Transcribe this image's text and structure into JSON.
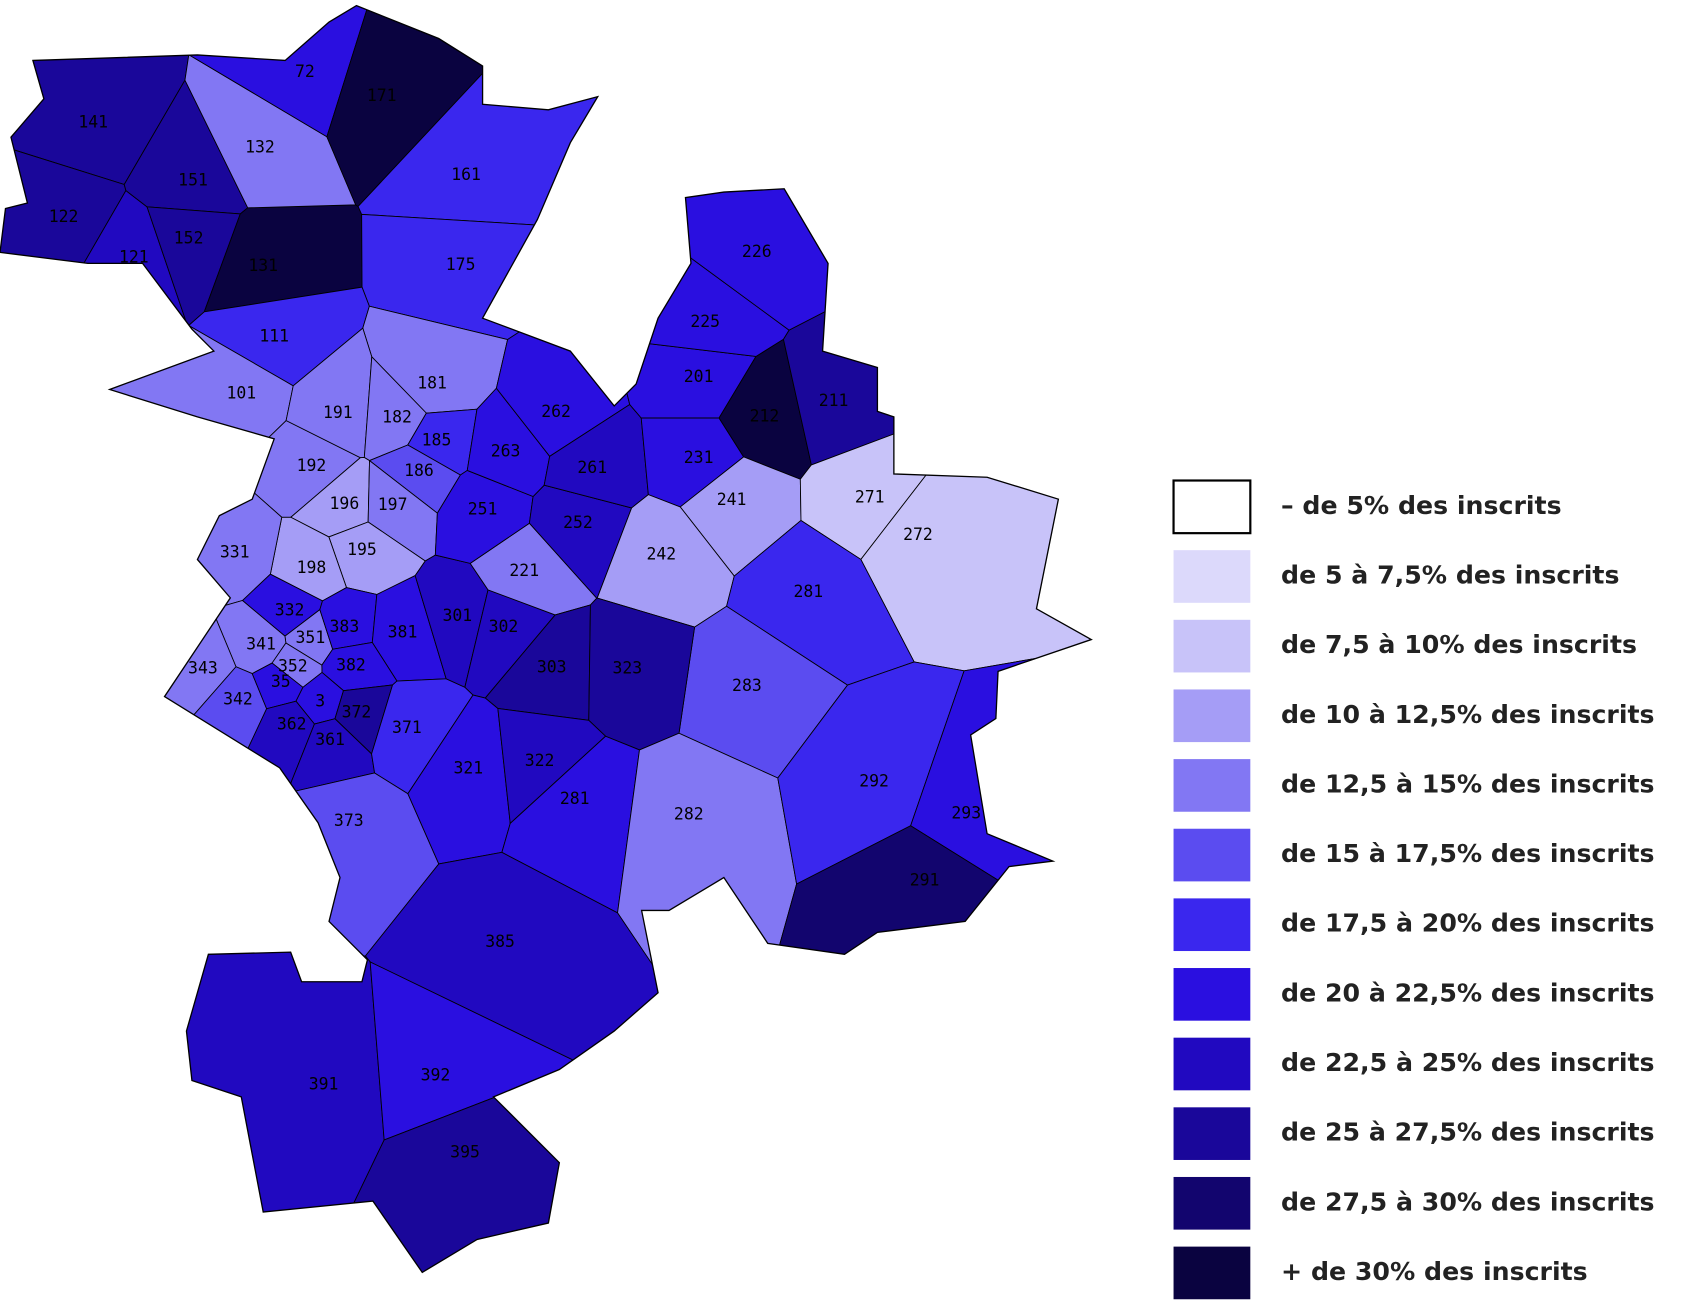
{
  "districts": [
    {
      "label": "141",
      "color": "#1a079a"
    },
    {
      "label": "122",
      "color": "#1a079a"
    },
    {
      "label": "121",
      "color": "#2109c0"
    },
    {
      "label": "151",
      "color": "#1a079a"
    },
    {
      "label": "152",
      "color": "#1a079a"
    },
    {
      "label": "131",
      "color": "#0a0340"
    },
    {
      "label": "132",
      "color": "#8277f3"
    },
    {
      "label": "72",
      "color": "#2a0fe0"
    },
    {
      "label": "171",
      "color": "#0a0340"
    },
    {
      "label": "161",
      "color": "#3a27ee"
    },
    {
      "label": "175",
      "color": "#3a27ee"
    },
    {
      "label": "111",
      "color": "#3a27ee"
    },
    {
      "label": "101",
      "color": "#8277f3"
    },
    {
      "label": "181",
      "color": "#8277f3"
    },
    {
      "label": "191",
      "color": "#8277f3"
    },
    {
      "label": "182",
      "color": "#8277f3"
    },
    {
      "label": "185",
      "color": "#3a27ee"
    },
    {
      "label": "186",
      "color": "#5b4cf0"
    },
    {
      "label": "192",
      "color": "#8277f3"
    },
    {
      "label": "196",
      "color": "#a59df6"
    },
    {
      "label": "197",
      "color": "#8277f3"
    },
    {
      "label": "195",
      "color": "#a59df6"
    },
    {
      "label": "198",
      "color": "#a59df6"
    },
    {
      "label": "331",
      "color": "#8277f3"
    },
    {
      "label": "332",
      "color": "#2a0fe0"
    },
    {
      "label": "351",
      "color": "#8277f3"
    },
    {
      "label": "383",
      "color": "#2a0fe0"
    },
    {
      "label": "381",
      "color": "#2a0fe0"
    },
    {
      "label": "341",
      "color": "#8277f3"
    },
    {
      "label": "343",
      "color": "#8277f3"
    },
    {
      "label": "342",
      "color": "#5b4cf0"
    },
    {
      "label": "352",
      "color": "#8277f3"
    },
    {
      "label": "382",
      "color": "#2a0fe0"
    },
    {
      "label": "35",
      "color": "#2a0fe0"
    },
    {
      "label": "3",
      "color": "#2a0fe0"
    },
    {
      "label": "362",
      "color": "#2109c0"
    },
    {
      "label": "372",
      "color": "#1a079a"
    },
    {
      "label": "361",
      "color": "#2109c0"
    },
    {
      "label": "371",
      "color": "#3a27ee"
    },
    {
      "label": "373",
      "color": "#5b4cf0"
    },
    {
      "label": "301",
      "color": "#2109c0"
    },
    {
      "label": "302",
      "color": "#2109c0"
    },
    {
      "label": "221",
      "color": "#8277f3"
    },
    {
      "label": "251",
      "color": "#2a0fe0"
    },
    {
      "label": "252",
      "color": "#2109c0"
    },
    {
      "label": "263",
      "color": "#2a0fe0"
    },
    {
      "label": "262",
      "color": "#2a0fe0"
    },
    {
      "label": "261",
      "color": "#2109c0"
    },
    {
      "label": "231",
      "color": "#2a0fe0"
    },
    {
      "label": "201",
      "color": "#2a0fe0"
    },
    {
      "label": "212",
      "color": "#0a0340"
    },
    {
      "label": "211",
      "color": "#1a079a"
    },
    {
      "label": "225",
      "color": "#2a0fe0"
    },
    {
      "label": "226",
      "color": "#2a0fe0"
    },
    {
      "label": "241",
      "color": "#a59df6"
    },
    {
      "label": "242",
      "color": "#a59df6"
    },
    {
      "label": "271",
      "color": "#c8c3f9"
    },
    {
      "label": "272",
      "color": "#c8c3f9"
    },
    {
      "label": "281",
      "color": "#3a27ee"
    },
    {
      "label": "283",
      "color": "#5b4cf0"
    },
    {
      "label": "303",
      "color": "#1a079a"
    },
    {
      "label": "323",
      "color": "#1a079a"
    },
    {
      "label": "321",
      "color": "#2a0fe0"
    },
    {
      "label": "322",
      "color": "#2109c0"
    },
    {
      "label": "281",
      "color": "#2a0fe0"
    },
    {
      "label": "282",
      "color": "#8277f3"
    },
    {
      "label": "292",
      "color": "#3a27ee"
    },
    {
      "label": "293",
      "color": "#2a0fe0"
    },
    {
      "label": "291",
      "color": "#12056e"
    },
    {
      "label": "385",
      "color": "#2109c0"
    },
    {
      "label": "391",
      "color": "#2109c0"
    },
    {
      "label": "392",
      "color": "#2a0fe0"
    },
    {
      "label": "395",
      "color": "#1a079a"
    }
  ],
  "legend": [
    {
      "label": "–  de 5% des inscrits",
      "color": "#ffffff"
    },
    {
      "label": "de  5 à 7,5% des inscrits",
      "color": "#dcd9fb"
    },
    {
      "label": "de 7,5 à 10% des inscrits",
      "color": "#c8c3f9"
    },
    {
      "label": "de 10 à 12,5% des inscrits",
      "color": "#a59df6"
    },
    {
      "label": "de 12,5 à 15% des inscrits",
      "color": "#8277f3"
    },
    {
      "label": "de 15 à 17,5% des inscrits",
      "color": "#5b4cf0"
    },
    {
      "label": "de 17,5 à 20% des inscrits",
      "color": "#3a27ee"
    },
    {
      "label": "de 20 à 22,5% des inscrits",
      "color": "#2a0fe0"
    },
    {
      "label": "de 22,5 à 25% des inscrits",
      "color": "#2109c0"
    },
    {
      "label": "de 25 à 27,5% des inscrits",
      "color": "#1a079a"
    },
    {
      "label": "de 27,5 à 30% des inscrits",
      "color": "#12056e"
    },
    {
      "label": "+ de 30% des inscrits",
      "color": "#0a0340"
    }
  ]
}
